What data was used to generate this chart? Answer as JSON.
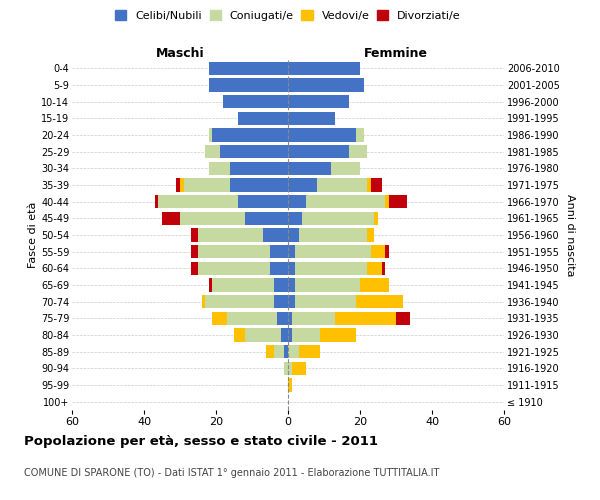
{
  "age_groups": [
    "100+",
    "95-99",
    "90-94",
    "85-89",
    "80-84",
    "75-79",
    "70-74",
    "65-69",
    "60-64",
    "55-59",
    "50-54",
    "45-49",
    "40-44",
    "35-39",
    "30-34",
    "25-29",
    "20-24",
    "15-19",
    "10-14",
    "5-9",
    "0-4"
  ],
  "birth_years": [
    "≤ 1910",
    "1911-1915",
    "1916-1920",
    "1921-1925",
    "1926-1930",
    "1931-1935",
    "1936-1940",
    "1941-1945",
    "1946-1950",
    "1951-1955",
    "1956-1960",
    "1961-1965",
    "1966-1970",
    "1971-1975",
    "1976-1980",
    "1981-1985",
    "1986-1990",
    "1991-1995",
    "1996-2000",
    "2001-2005",
    "2006-2010"
  ],
  "maschi": {
    "celibi": [
      0,
      0,
      0,
      1,
      2,
      3,
      4,
      4,
      5,
      5,
      7,
      12,
      14,
      16,
      16,
      19,
      21,
      14,
      18,
      22,
      22
    ],
    "coniugati": [
      0,
      0,
      1,
      3,
      10,
      14,
      19,
      17,
      20,
      20,
      18,
      18,
      22,
      13,
      6,
      4,
      1,
      0,
      0,
      0,
      0
    ],
    "vedovi": [
      0,
      0,
      0,
      2,
      3,
      4,
      1,
      0,
      0,
      0,
      0,
      0,
      0,
      1,
      0,
      0,
      0,
      0,
      0,
      0,
      0
    ],
    "divorziati": [
      0,
      0,
      0,
      0,
      0,
      0,
      0,
      1,
      2,
      2,
      2,
      5,
      1,
      1,
      0,
      0,
      0,
      0,
      0,
      0,
      0
    ]
  },
  "femmine": {
    "nubili": [
      0,
      0,
      0,
      0,
      1,
      1,
      2,
      2,
      2,
      2,
      3,
      4,
      5,
      8,
      12,
      17,
      19,
      13,
      17,
      21,
      20
    ],
    "coniugate": [
      0,
      0,
      1,
      3,
      8,
      12,
      17,
      18,
      20,
      21,
      19,
      20,
      22,
      14,
      8,
      5,
      2,
      0,
      0,
      0,
      0
    ],
    "vedove": [
      0,
      1,
      4,
      6,
      10,
      17,
      13,
      8,
      4,
      4,
      2,
      1,
      1,
      1,
      0,
      0,
      0,
      0,
      0,
      0,
      0
    ],
    "divorziate": [
      0,
      0,
      0,
      0,
      0,
      4,
      0,
      0,
      1,
      1,
      0,
      0,
      5,
      3,
      0,
      0,
      0,
      0,
      0,
      0,
      0
    ]
  },
  "colors": {
    "celibi": "#4472c4",
    "coniugati": "#c5d9a0",
    "vedovi": "#ffc000",
    "divorziati": "#c0000b"
  },
  "xlim": 60,
  "title": "Popolazione per età, sesso e stato civile - 2011",
  "subtitle": "COMUNE DI SPARONE (TO) - Dati ISTAT 1° gennaio 2011 - Elaborazione TUTTITALIA.IT",
  "ylabel_left": "Fasce di età",
  "ylabel_right": "Anni di nascita",
  "xlabel_maschi": "Maschi",
  "xlabel_femmine": "Femmine",
  "legend_labels": [
    "Celibi/Nubili",
    "Coniugati/e",
    "Vedovi/e",
    "Divorziati/e"
  ],
  "background_color": "#ffffff",
  "grid_color": "#cccccc"
}
